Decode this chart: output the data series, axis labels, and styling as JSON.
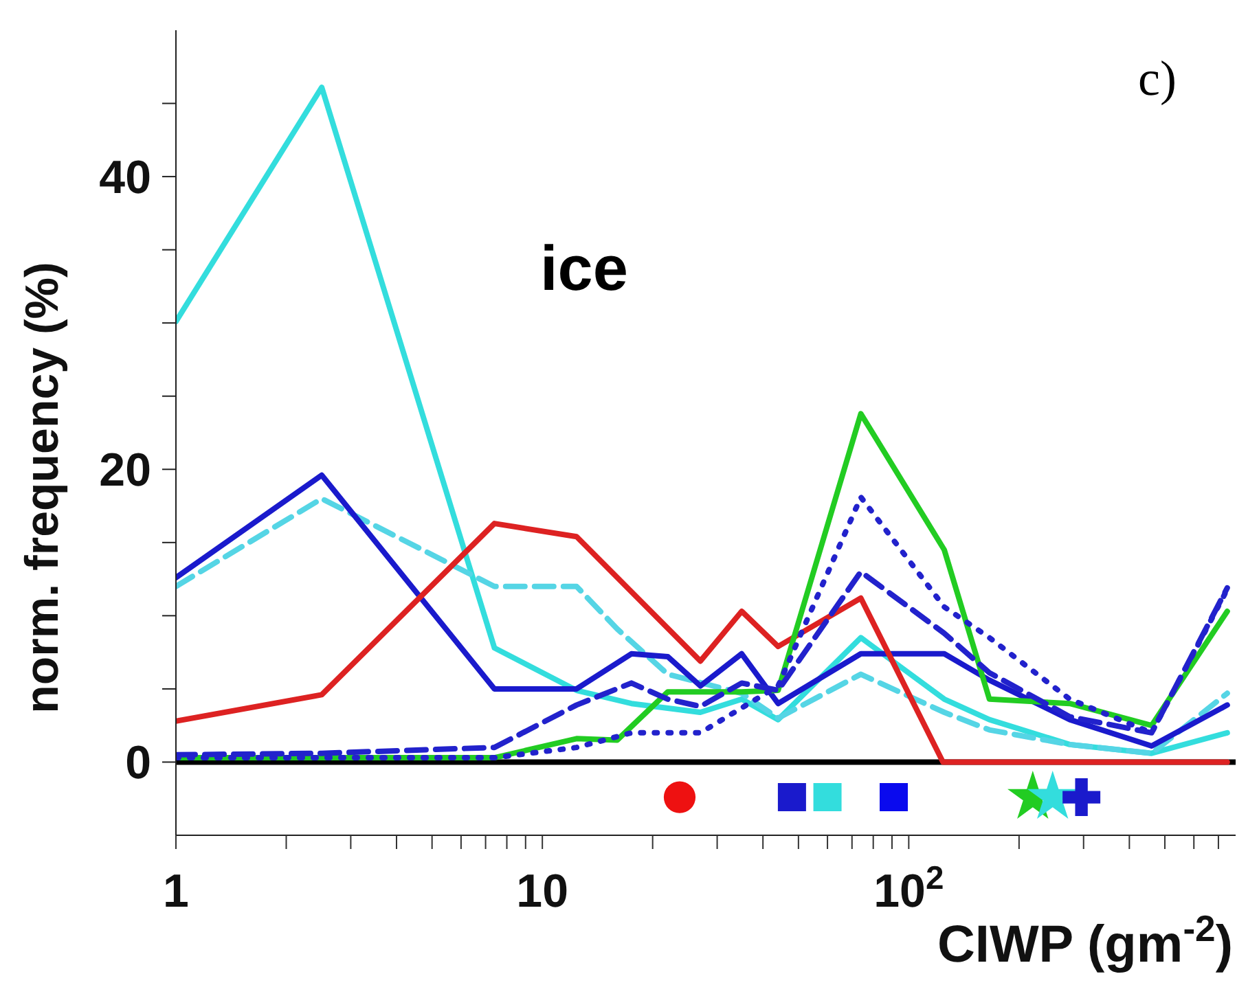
{
  "chart_data": {
    "type": "line",
    "xlabel": "CIWP (gm$^{-2}$)",
    "ylabel": "norm. frequency (%)",
    "annotations": [
      "ice",
      "c)"
    ],
    "log": "x",
    "xlim": [
      1,
      780
    ],
    "ylim": [
      -5,
      50
    ],
    "xticks": [
      {
        "value": 1,
        "label": "1"
      },
      {
        "value": 2,
        "label": null
      },
      {
        "value": 3,
        "label": null
      },
      {
        "value": 4,
        "label": null
      },
      {
        "value": 5,
        "label": null
      },
      {
        "value": 6,
        "label": null
      },
      {
        "value": 7,
        "label": null
      },
      {
        "value": 8,
        "label": null
      },
      {
        "value": 9,
        "label": null
      },
      {
        "value": 10,
        "label": "10"
      },
      {
        "value": 20,
        "label": null
      },
      {
        "value": 30,
        "label": null
      },
      {
        "value": 40,
        "label": null
      },
      {
        "value": 50,
        "label": null
      },
      {
        "value": 60,
        "label": null
      },
      {
        "value": 70,
        "label": null
      },
      {
        "value": 80,
        "label": null
      },
      {
        "value": 90,
        "label": null
      },
      {
        "value": 100,
        "label": "10$^{2}$"
      },
      {
        "value": 200,
        "label": null
      },
      {
        "value": 300,
        "label": null
      },
      {
        "value": 400,
        "label": null
      },
      {
        "value": 500,
        "label": null
      },
      {
        "value": 600,
        "label": null
      },
      {
        "value": 700,
        "label": null
      }
    ],
    "yticks": [
      0,
      {
        "value": 5,
        "label": null
      },
      {
        "value": 10,
        "label": null
      },
      {
        "value": 15,
        "label": null
      },
      20,
      {
        "value": 25,
        "label": null
      },
      {
        "value": 30,
        "label": null
      },
      {
        "value": 35,
        "label": null
      },
      40,
      {
        "value": 45,
        "label": null
      }
    ],
    "ref_lines": [
      {
        "axis": "y",
        "value": 0,
        "color": "#000000"
      }
    ],
    "series": [
      {
        "color": "#33dddd",
        "line_style": "solid",
        "x": [
          1,
          2.5,
          7.4,
          12.4,
          17.5,
          27,
          35,
          44,
          74,
          125,
          166,
          275,
          460,
          740
        ],
        "values": [
          30.1,
          46.1,
          7.8,
          4.9,
          4.0,
          3.4,
          4.3,
          2.9,
          8.5,
          4.3,
          2.9,
          1.2,
          0.6,
          2.0
        ]
      },
      {
        "color": "#55d5e5",
        "line_style": "dashed",
        "x": [
          1,
          2.5,
          7.4,
          12.4,
          16,
          22,
          35,
          44,
          74,
          125,
          166,
          275,
          460,
          740
        ],
        "values": [
          12.0,
          18.0,
          12.0,
          12.0,
          9.1,
          6.0,
          4.7,
          3.0,
          6.0,
          3.4,
          2.2,
          1.2,
          0.6,
          4.7
        ]
      },
      {
        "color": "#1a1acc",
        "line_style": "solid",
        "x": [
          1,
          2.5,
          7.4,
          12.4,
          17.5,
          22,
          27,
          35,
          44,
          74,
          125,
          166,
          275,
          460,
          740
        ],
        "values": [
          12.6,
          19.6,
          5.0,
          5.0,
          7.4,
          7.2,
          5.2,
          7.4,
          4.0,
          7.4,
          7.4,
          5.6,
          2.9,
          1.1,
          3.9
        ]
      },
      {
        "color": "#dd2222",
        "line_style": "solid",
        "x": [
          1,
          2.5,
          7.4,
          12.4,
          27,
          35,
          44,
          74,
          124,
          740
        ],
        "values": [
          2.8,
          4.6,
          16.3,
          15.4,
          6.9,
          10.3,
          7.9,
          11.2,
          0,
          0
        ]
      },
      {
        "color": "#22cc22",
        "line_style": "solid",
        "x": [
          1,
          2.5,
          7.4,
          12.4,
          16,
          22,
          27,
          35,
          44,
          74,
          125,
          166,
          275,
          460,
          740
        ],
        "values": [
          0.3,
          0.3,
          0.3,
          1.6,
          1.5,
          4.8,
          4.8,
          4.8,
          4.9,
          23.8,
          14.5,
          4.3,
          4.0,
          2.5,
          10.3
        ]
      },
      {
        "color": "#2222cc",
        "line_style": "dotted",
        "x": [
          1,
          7.4,
          12.4,
          17.5,
          27,
          44,
          74,
          125,
          166,
          275,
          460,
          740
        ],
        "values": [
          0.3,
          0.3,
          1.0,
          2.0,
          2.0,
          5.2,
          18.1,
          10.6,
          8.5,
          4.3,
          2.0,
          11.8
        ]
      },
      {
        "color": "#2222cc",
        "line_style": "dashed",
        "x": [
          1,
          2.5,
          7.4,
          12.4,
          17.5,
          22,
          27,
          35,
          44,
          74,
          125,
          166,
          275,
          460,
          740
        ],
        "values": [
          0.5,
          0.6,
          1.0,
          3.9,
          5.4,
          4.3,
          3.8,
          5.4,
          4.9,
          13.0,
          8.8,
          6.1,
          3.1,
          2.0,
          11.9
        ]
      },
      {
        "type": "scatter",
        "marker": "circle",
        "color": "#ee1111",
        "x": [
          23.7
        ],
        "values": [
          -2.4
        ]
      },
      {
        "type": "scatter",
        "marker": "square",
        "color": "#1a1acc",
        "x": [
          48
        ],
        "values": [
          -2.4
        ]
      },
      {
        "type": "scatter",
        "marker": "square",
        "color": "#33dddd",
        "x": [
          60
        ],
        "values": [
          -2.4
        ]
      },
      {
        "type": "scatter",
        "marker": "square",
        "color": "#0a0aee",
        "x": [
          91
        ],
        "values": [
          -2.4
        ]
      },
      {
        "type": "scatter",
        "marker": "star",
        "color": "#22cc22",
        "x": [
          218
        ],
        "values": [
          -2.4
        ]
      },
      {
        "type": "scatter",
        "marker": "star",
        "color": "#33dddd",
        "x": [
          247
        ],
        "values": [
          -2.4
        ]
      },
      {
        "type": "scatter",
        "marker": "cross",
        "color": "#1a1acc",
        "x": [
          296
        ],
        "values": [
          -2.4
        ]
      }
    ]
  }
}
